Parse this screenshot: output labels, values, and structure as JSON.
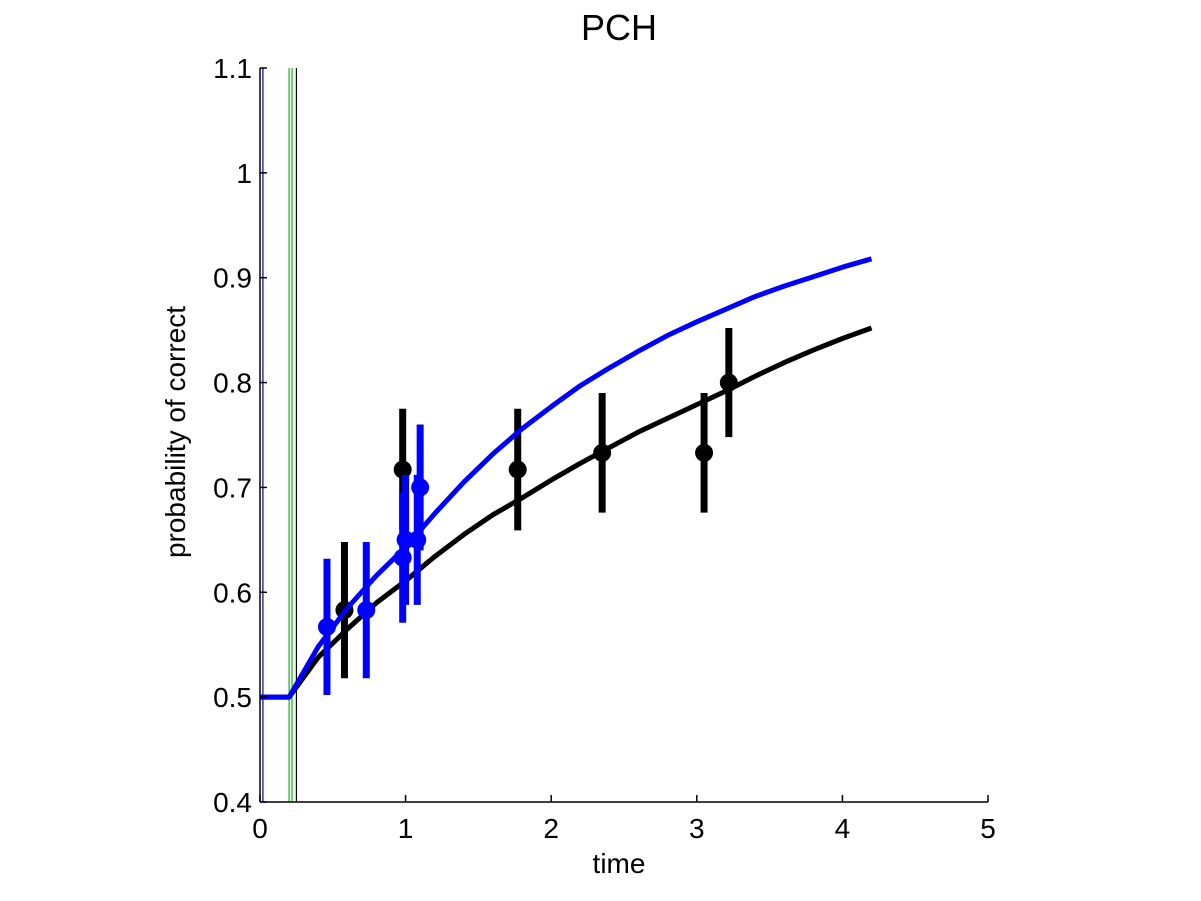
{
  "chart_data": {
    "type": "line",
    "title": "PCH",
    "xlabel": "time",
    "ylabel": "probability of correct",
    "xlim": [
      0,
      5
    ],
    "ylim": [
      0.4,
      1.1
    ],
    "xticks": [
      "0",
      "1",
      "2",
      "3",
      "4",
      "5"
    ],
    "yticks": [
      "0.4",
      "0.5",
      "0.6",
      "0.7",
      "0.8",
      "0.9",
      "1",
      "1.1"
    ],
    "grid": false,
    "colors": {
      "black": "#000000",
      "blue": "#0000ff",
      "green": "#00c000",
      "navy": "#00008b"
    },
    "vertical_lines": [
      {
        "x": 0.02,
        "color": "#00008b"
      },
      {
        "x": 0.2,
        "color": "#00c000"
      },
      {
        "x": 0.22,
        "color": "#00c000"
      },
      {
        "x": 0.25,
        "color": "#000000"
      }
    ],
    "series": [
      {
        "color": "#000000",
        "fit": {
          "x": [
            0,
            0.2,
            0.4,
            0.6,
            0.8,
            1.0,
            1.2,
            1.4,
            1.6,
            1.8,
            2.0,
            2.2,
            2.4,
            2.6,
            2.8,
            3.0,
            3.2,
            3.4,
            3.6,
            3.8,
            4.0,
            4.2
          ],
          "y": [
            0.5,
            0.5,
            0.538,
            0.565,
            0.59,
            0.611,
            0.634,
            0.655,
            0.674,
            0.69,
            0.707,
            0.723,
            0.738,
            0.753,
            0.766,
            0.779,
            0.792,
            0.806,
            0.819,
            0.831,
            0.842,
            0.852
          ]
        },
        "points": [
          {
            "x": 0.58,
            "y": 0.583,
            "err": 0.065
          },
          {
            "x": 0.98,
            "y": 0.717,
            "err": 0.058
          },
          {
            "x": 1.77,
            "y": 0.717,
            "err": 0.058
          },
          {
            "x": 2.35,
            "y": 0.733,
            "err": 0.057
          },
          {
            "x": 3.05,
            "y": 0.733,
            "err": 0.057
          },
          {
            "x": 3.22,
            "y": 0.8,
            "err": 0.052
          }
        ]
      },
      {
        "color": "#0000ff",
        "fit": {
          "x": [
            0,
            0.2,
            0.4,
            0.6,
            0.8,
            1.0,
            1.2,
            1.4,
            1.6,
            1.8,
            2.0,
            2.2,
            2.4,
            2.6,
            2.8,
            3.0,
            3.2,
            3.4,
            3.6,
            3.8,
            4.0,
            4.2
          ],
          "y": [
            0.5,
            0.5,
            0.548,
            0.585,
            0.616,
            0.643,
            0.675,
            0.705,
            0.732,
            0.756,
            0.777,
            0.797,
            0.814,
            0.83,
            0.845,
            0.858,
            0.87,
            0.882,
            0.892,
            0.901,
            0.91,
            0.918
          ]
        },
        "points": [
          {
            "x": 0.46,
            "y": 0.567,
            "err": 0.065
          },
          {
            "x": 0.73,
            "y": 0.583,
            "err": 0.065
          },
          {
            "x": 0.98,
            "y": 0.633,
            "err": 0.062
          },
          {
            "x": 1.0,
            "y": 0.65,
            "err": 0.062
          },
          {
            "x": 1.08,
            "y": 0.65,
            "err": 0.062
          },
          {
            "x": 1.1,
            "y": 0.7,
            "err": 0.06
          }
        ]
      }
    ]
  }
}
